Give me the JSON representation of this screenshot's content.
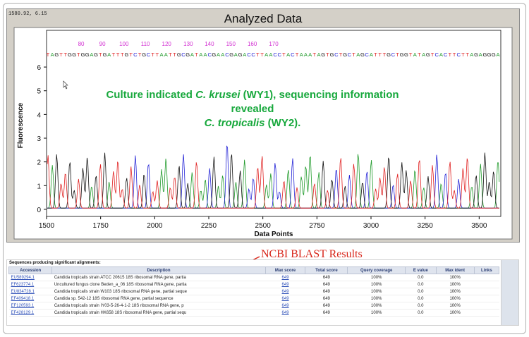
{
  "chart": {
    "coord_readout": "1580.92, 6.15",
    "title": "Analyzed Data",
    "ylabel": "Fluorescence",
    "xlabel": "Data Points",
    "annotation": {
      "line1_prefix": "Culture indicated ",
      "line1_species": "C. krusei",
      "line1_suffix": " (WY1), sequencing information revealed",
      "line2_species": "C. tropicalis",
      "line2_suffix": " (WY2)."
    },
    "sequence": "TAGTTGGTGGAGTGATTTGTCTGCTTAATTGCGATAACGAACGAGACCTTAACCTACTAAATAGTGCTGCTAGCATTTGCTGGTATAGTCACTTCTTAGAGGGA",
    "base_colors": {
      "A": "#1f9a2a",
      "C": "#2323d6",
      "G": "#111111",
      "T": "#e02020"
    },
    "base_number_color": "#d22fd2"
  },
  "chart_data": {
    "type": "line",
    "xlim": [
      1500,
      3600
    ],
    "ylim": [
      -0.3,
      6.3
    ],
    "x_ticks": [
      1500,
      1750,
      2000,
      2250,
      2500,
      2750,
      3000,
      3250,
      3500
    ],
    "y_ticks": [
      0,
      1,
      2,
      3,
      4,
      5,
      6
    ],
    "base_position_ticks": [
      80,
      90,
      100,
      110,
      120,
      130,
      140,
      150,
      160,
      170
    ],
    "base_position_x": [
      1660,
      1758,
      1858,
      1957,
      2055,
      2155,
      2253,
      2352,
      2451,
      2550
    ]
  },
  "blast": {
    "heading": "NCBI BLAST Results",
    "caption": "Sequences producing significant alignments:",
    "columns": [
      "Accession",
      "Description",
      "Max score",
      "Total score",
      "Query coverage",
      "E value",
      "Max ident",
      "Links"
    ],
    "rows": [
      [
        "EU589294.1",
        "Candida tropicalis strain ATCC 20615 18S ribosomal RNA gene, partia",
        "649",
        "649",
        "100%",
        "0.0",
        "100%"
      ],
      [
        "EF623774.1",
        "Uncultured fungus clone Beden_a_06 18S ribosomal RNA gene, partia",
        "649",
        "649",
        "100%",
        "0.0",
        "100%"
      ],
      [
        "EU834728.1",
        "Candida tropicalis strain W103 18S ribosomal RNA gene, partial seque",
        "649",
        "649",
        "100%",
        "0.0",
        "100%"
      ],
      [
        "EF409418.1",
        "Candida sp. 542-12 18S ribosomal RNA gene, partial sequence",
        "649",
        "649",
        "100%",
        "0.0",
        "100%"
      ],
      [
        "EF120593.1",
        "Candida tropicalis strain IY03-5-26-4-1-2 18S ribosomal RNA gene, p",
        "649",
        "649",
        "100%",
        "0.0",
        "100%"
      ],
      [
        "EF428129.1",
        "Candida tropicalis strain HK658 18S ribosomal RNA gene, partial sequ",
        "649",
        "649",
        "100%",
        "0.0",
        "100%"
      ]
    ]
  }
}
